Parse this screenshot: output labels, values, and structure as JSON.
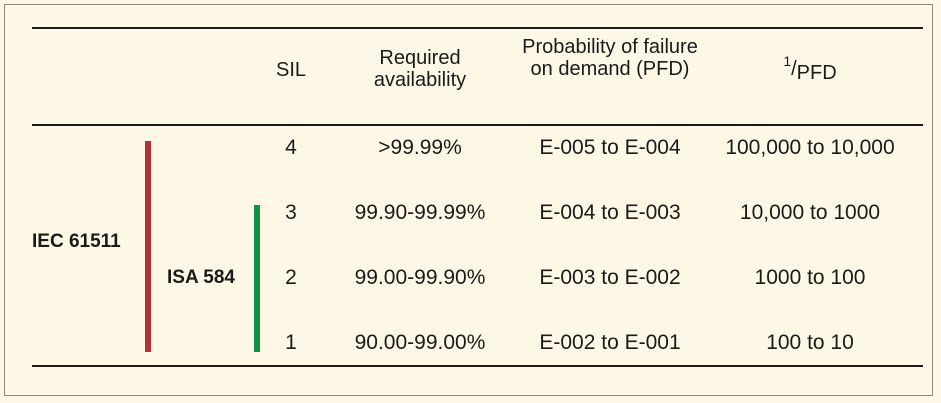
{
  "table": {
    "headers": {
      "sil": "SIL",
      "availability": "Required availability",
      "pfd": "Probability of failure on demand (PFD)",
      "inverse_numerator": "1",
      "inverse_denominator": "PFD"
    },
    "standards": {
      "iec": {
        "label": "IEC 61511",
        "color": "#b5313a"
      },
      "isa": {
        "label": "ISA 584",
        "color": "#12913f"
      }
    },
    "rows": [
      {
        "sil": "4",
        "availability": ">99.99%",
        "pfd": "E-005 to E-004",
        "inverse": "100,000 to 10,000"
      },
      {
        "sil": "3",
        "availability": "99.90-99.99%",
        "pfd": "E-004 to E-003",
        "inverse": "10,000 to 1000"
      },
      {
        "sil": "2",
        "availability": "99.00-99.90%",
        "pfd": "E-003 to E-002",
        "inverse": "1000 to 100"
      },
      {
        "sil": "1",
        "availability": "90.00-99.00%",
        "pfd": "E-002 to E-001",
        "inverse": "100 to 10"
      }
    ]
  }
}
